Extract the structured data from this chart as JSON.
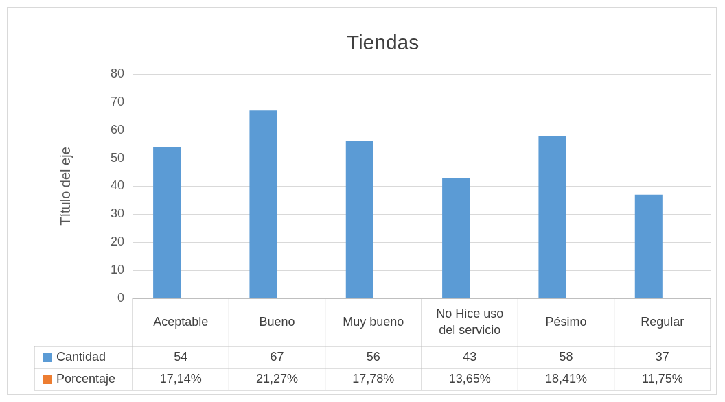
{
  "chart_data": {
    "type": "bar",
    "title": "Tiendas",
    "ylabel": "Título del eje",
    "categories": [
      "Aceptable",
      "Bueno",
      "Muy bueno",
      "No Hice uso del servicio",
      "Pésimo",
      "Regular"
    ],
    "series": [
      {
        "name": "Cantidad",
        "color": "#5b9bd5",
        "values": [
          54,
          67,
          56,
          43,
          58,
          37
        ],
        "value_labels": [
          "54",
          "67",
          "56",
          "43",
          "58",
          "37"
        ]
      },
      {
        "name": "Porcentaje",
        "color": "#ed7d31",
        "values": [
          0.1714,
          0.2127,
          0.1778,
          0.1365,
          0.1841,
          0.1175
        ],
        "value_labels": [
          "17,14%",
          "21,27%",
          "17,78%",
          "13,65%",
          "18,41%",
          "11,75%"
        ]
      }
    ],
    "ylim": [
      0,
      80
    ],
    "yticks": [
      0,
      10,
      20,
      30,
      40,
      50,
      60,
      70,
      80
    ],
    "grid": "y",
    "legend": "bottom left"
  }
}
